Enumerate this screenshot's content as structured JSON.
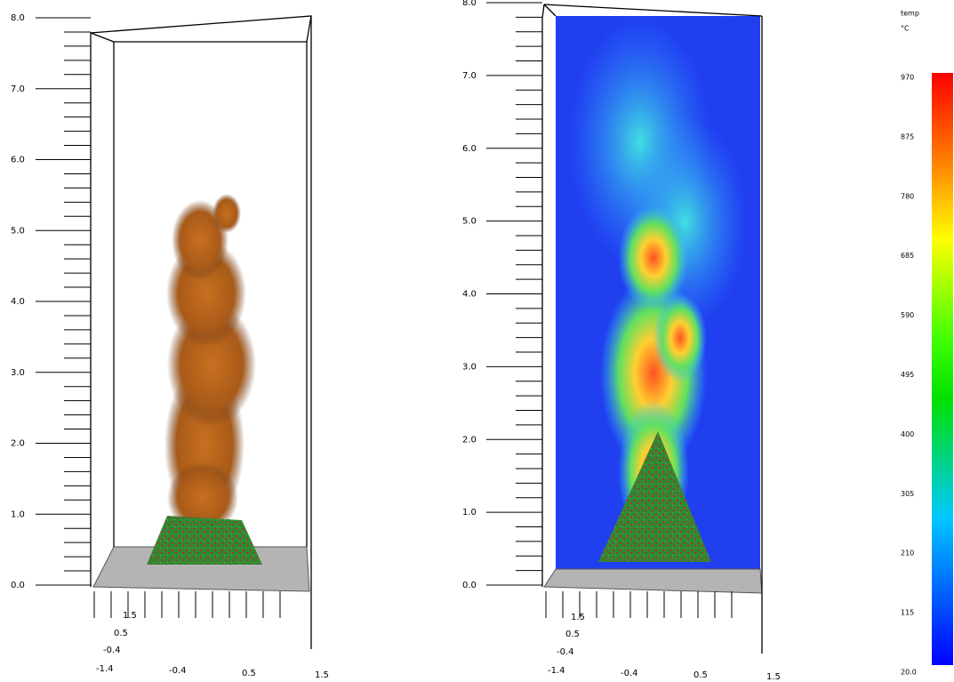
{
  "left_view": {
    "height_labels": [
      "0.0",
      "1.0",
      "2.0",
      "3.0",
      "4.0",
      "5.0",
      "6.0",
      "7.0",
      "8.0"
    ],
    "x_labels": [
      "-1.4",
      "-0.4",
      "0.5",
      "1.5"
    ],
    "depth_labels": [
      "1.5",
      "0.5",
      "-0.4"
    ]
  },
  "right_view": {
    "height_labels": [
      "0.0",
      "1.0",
      "2.0",
      "3.0",
      "4.0",
      "5.0",
      "6.0",
      "7.0",
      "8.0"
    ],
    "x_labels": [
      "-1.4",
      "-0.4",
      "0.5",
      "1.5"
    ],
    "depth_labels": [
      "1.5",
      "0.5",
      "-0.4"
    ]
  },
  "colorbar": {
    "title": "temp",
    "unit": "°C",
    "labels": [
      "970",
      "875",
      "780",
      "685",
      "590",
      "495",
      "400",
      "305",
      "210",
      "115",
      "20.0"
    ]
  }
}
